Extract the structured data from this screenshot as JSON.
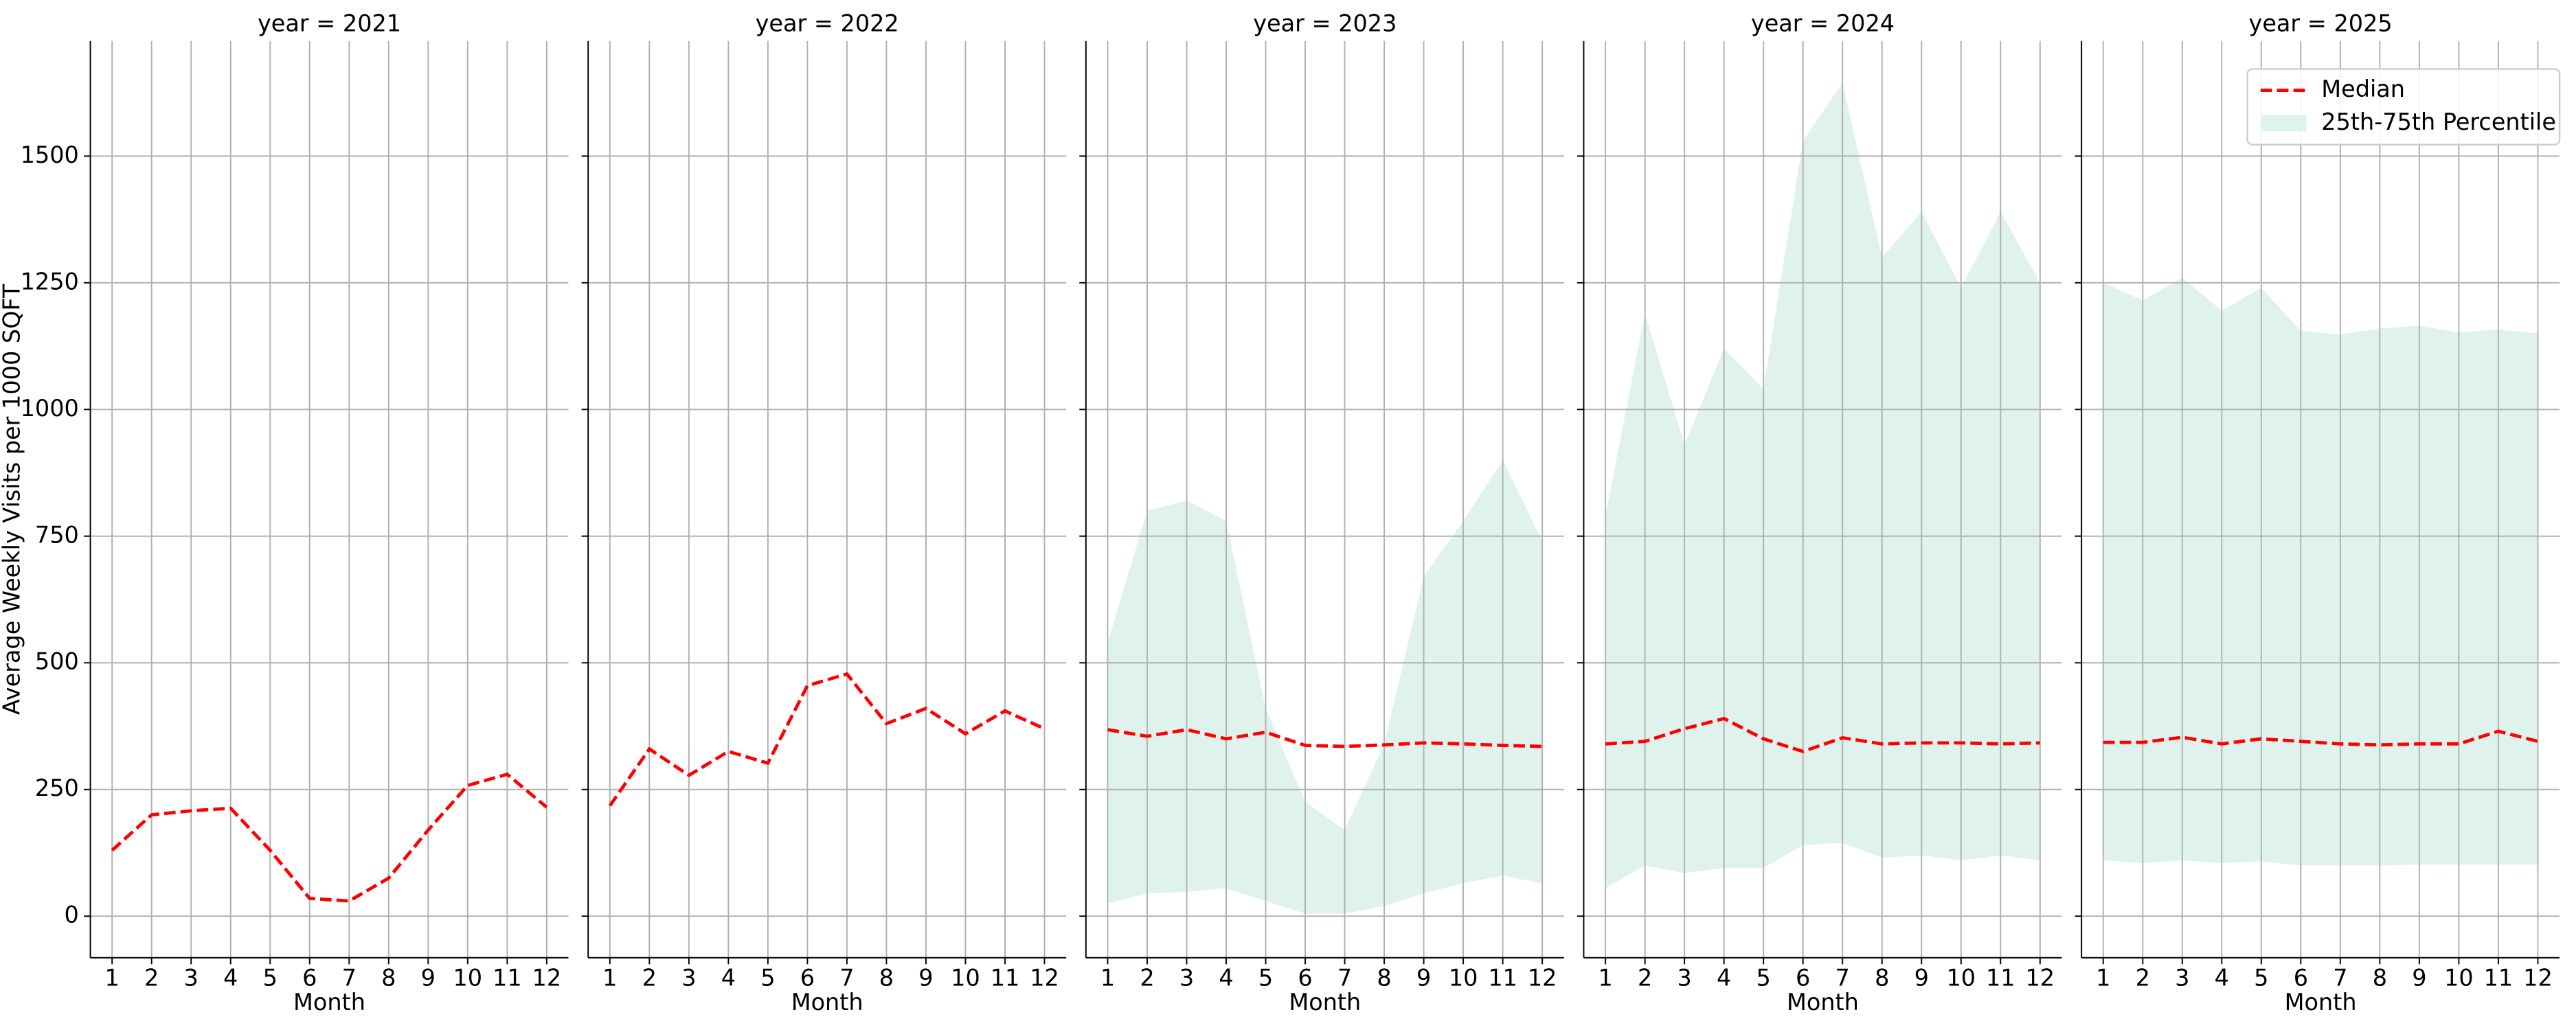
{
  "chart_data": [
    {
      "type": "line",
      "title": "year = 2021",
      "xlabel": "Month",
      "ylabel": "Average Weekly Visits per 1000 SQFT",
      "x": [
        1,
        2,
        3,
        4,
        5,
        6,
        7,
        8,
        9,
        10,
        11,
        12
      ],
      "xlim": [
        0.45,
        12.55
      ],
      "xticks": [
        1,
        2,
        3,
        4,
        5,
        6,
        7,
        8,
        9,
        10,
        11,
        12
      ],
      "ylim": [
        -82,
        1727
      ],
      "yticks": [
        0,
        250,
        500,
        750,
        1000,
        1250,
        1500
      ],
      "grid": true,
      "series": [
        {
          "name": "Median",
          "color": "#ff0000",
          "values": [
            130,
            200,
            208,
            213,
            130,
            35,
            30,
            75,
            170,
            258,
            280,
            215
          ]
        }
      ]
    },
    {
      "type": "line",
      "title": "year = 2022",
      "xlabel": "Month",
      "x": [
        1,
        2,
        3,
        4,
        5,
        6,
        7,
        8,
        9,
        10,
        11,
        12
      ],
      "xlim": [
        0.45,
        12.55
      ],
      "xticks": [
        1,
        2,
        3,
        4,
        5,
        6,
        7,
        8,
        9,
        10,
        11,
        12
      ],
      "ylim": [
        -82,
        1727
      ],
      "yticks": [
        0,
        250,
        500,
        750,
        1000,
        1250,
        1500
      ],
      "grid": true,
      "series": [
        {
          "name": "Median",
          "color": "#ff0000",
          "values": [
            218,
            330,
            278,
            325,
            302,
            455,
            478,
            380,
            410,
            360,
            405,
            370
          ]
        }
      ]
    },
    {
      "type": "line",
      "title": "year = 2023",
      "xlabel": "Month",
      "x": [
        1,
        2,
        3,
        4,
        5,
        6,
        7,
        8,
        9,
        10,
        11,
        12
      ],
      "xlim": [
        0.45,
        12.55
      ],
      "xticks": [
        1,
        2,
        3,
        4,
        5,
        6,
        7,
        8,
        9,
        10,
        11,
        12
      ],
      "ylim": [
        -82,
        1727
      ],
      "yticks": [
        0,
        250,
        500,
        750,
        1000,
        1250,
        1500
      ],
      "grid": true,
      "series": [
        {
          "name": "Median",
          "color": "#ff0000",
          "values": [
            368,
            355,
            368,
            350,
            363,
            337,
            335,
            338,
            342,
            340,
            337,
            335
          ]
        }
      ],
      "band": {
        "name": "25th-75th Percentile",
        "color": "#dff2ec",
        "low": [
          25,
          45,
          48,
          55,
          30,
          5,
          5,
          20,
          45,
          65,
          80,
          65
        ],
        "high": [
          540,
          800,
          820,
          780,
          410,
          225,
          170,
          340,
          670,
          780,
          900,
          740
        ]
      }
    },
    {
      "type": "line",
      "title": "year = 2024",
      "xlabel": "Month",
      "x": [
        1,
        2,
        3,
        4,
        5,
        6,
        7,
        8,
        9,
        10,
        11,
        12
      ],
      "xlim": [
        0.45,
        12.55
      ],
      "xticks": [
        1,
        2,
        3,
        4,
        5,
        6,
        7,
        8,
        9,
        10,
        11,
        12
      ],
      "ylim": [
        -82,
        1727
      ],
      "yticks": [
        0,
        250,
        500,
        750,
        1000,
        1250,
        1500
      ],
      "grid": true,
      "series": [
        {
          "name": "Median",
          "color": "#ff0000",
          "values": [
            340,
            345,
            370,
            390,
            350,
            325,
            352,
            340,
            342,
            342,
            340,
            342
          ]
        }
      ],
      "band": {
        "name": "25th-75th Percentile",
        "color": "#dff2ec",
        "low": [
          55,
          100,
          85,
          95,
          95,
          140,
          145,
          115,
          120,
          110,
          120,
          110
        ],
        "high": [
          790,
          1190,
          930,
          1120,
          1040,
          1530,
          1645,
          1300,
          1390,
          1240,
          1390,
          1250
        ]
      }
    },
    {
      "type": "line",
      "title": "year = 2025",
      "xlabel": "Month",
      "x": [
        1,
        2,
        3,
        4,
        5,
        6,
        7,
        8,
        9,
        10,
        11,
        12
      ],
      "xlim": [
        0.45,
        12.55
      ],
      "xticks": [
        1,
        2,
        3,
        4,
        5,
        6,
        7,
        8,
        9,
        10,
        11,
        12
      ],
      "ylim": [
        -82,
        1727
      ],
      "yticks": [
        0,
        250,
        500,
        750,
        1000,
        1250,
        1500
      ],
      "grid": true,
      "legend": "upper right",
      "series": [
        {
          "name": "Median",
          "color": "#ff0000",
          "values": [
            343,
            343,
            353,
            340,
            350,
            345,
            340,
            338,
            340,
            340,
            365,
            345
          ]
        }
      ],
      "band": {
        "name": "25th-75th Percentile",
        "color": "#dff2ec",
        "low": [
          110,
          105,
          110,
          105,
          108,
          100,
          100,
          100,
          102,
          102,
          102,
          102
        ],
        "high": [
          1250,
          1215,
          1260,
          1195,
          1240,
          1155,
          1148,
          1160,
          1165,
          1152,
          1158,
          1150
        ]
      }
    }
  ]
}
